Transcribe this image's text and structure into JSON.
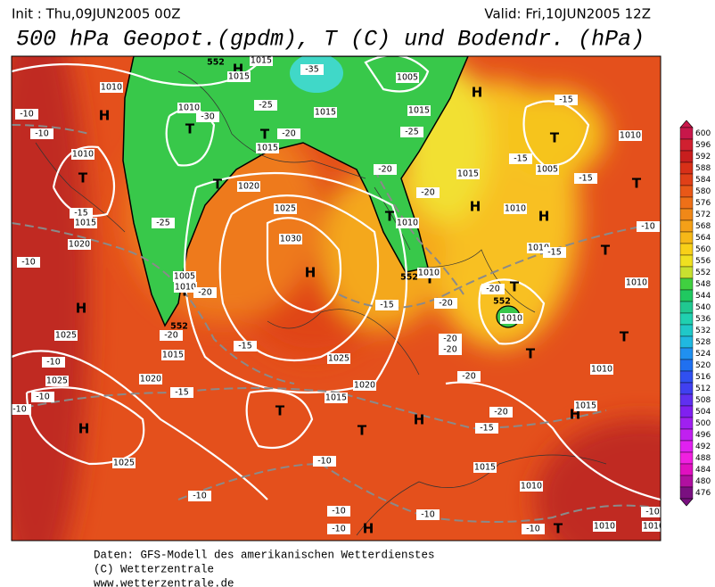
{
  "header": {
    "init": "Init : Thu,09JUN2005 00Z",
    "valid": "Valid: Fri,10JUN2005 12Z",
    "title": "500 hPa Geopot.(gpdm), T (C) und Bodendr. (hPa)"
  },
  "footer": {
    "line1": "Daten: GFS-Modell des amerikanischen Wetterdienstes",
    "line2": "(C) Wetterzentrale",
    "line3": "www.wetterzentrale.de"
  },
  "colorbar": {
    "levels": [
      600,
      596,
      592,
      588,
      584,
      580,
      576,
      572,
      568,
      564,
      560,
      556,
      552,
      548,
      544,
      540,
      536,
      532,
      528,
      524,
      520,
      516,
      512,
      508,
      504,
      500,
      496,
      492,
      488,
      484,
      480,
      476
    ],
    "colors": [
      "#c8174a",
      "#d02030",
      "#c81e1e",
      "#d83018",
      "#e04018",
      "#e85818",
      "#ee7018",
      "#f08818",
      "#f4a018",
      "#f6b818",
      "#f8d018",
      "#f0e020",
      "#c8e030",
      "#40d040",
      "#20c860",
      "#20c890",
      "#20d0b0",
      "#20c8c8",
      "#20b8e0",
      "#2090f0",
      "#2070f0",
      "#3050f0",
      "#4040f0",
      "#6030f0",
      "#8020f0",
      "#a020f0",
      "#c020f0",
      "#e020f0",
      "#f020e0",
      "#e010c0",
      "#b010a0",
      "#7a1080"
    ]
  },
  "map": {
    "pressure_centers": [
      "H",
      "H",
      "H",
      "H",
      "H",
      "H",
      "H",
      "H",
      "H",
      "H",
      "H",
      "T",
      "T",
      "T",
      "T",
      "T",
      "T",
      "T",
      "T",
      "T",
      "T",
      "T",
      "T",
      "T",
      "T",
      "T",
      "T"
    ],
    "isobar_labels": [
      1015,
      1015,
      1010,
      1010,
      1005,
      1015,
      1015,
      1010,
      1015,
      1020,
      1025,
      1030,
      1015,
      1020,
      1025,
      1025,
      1005,
      1010,
      1015,
      1020,
      1025,
      1020,
      1015,
      1025,
      1015,
      1010,
      1010,
      1010,
      1015,
      1010,
      1010,
      1010,
      1010,
      1005,
      1010,
      1015,
      1010,
      1010,
      1010
    ],
    "temperature_labels": [
      -10,
      -10,
      -15,
      -25,
      -30,
      -35,
      -25,
      -20,
      -25,
      -20,
      -20,
      -15,
      -15,
      -15,
      -10,
      -15,
      -10,
      -20,
      -20,
      -15,
      -15,
      -20,
      -20,
      -20,
      -20,
      -20,
      -20,
      -15,
      -10,
      -10,
      -15,
      -10,
      -10,
      -10,
      -10,
      -10,
      -10,
      -10,
      -10
    ],
    "height_labels": [
      552,
      552,
      552,
      552
    ]
  }
}
